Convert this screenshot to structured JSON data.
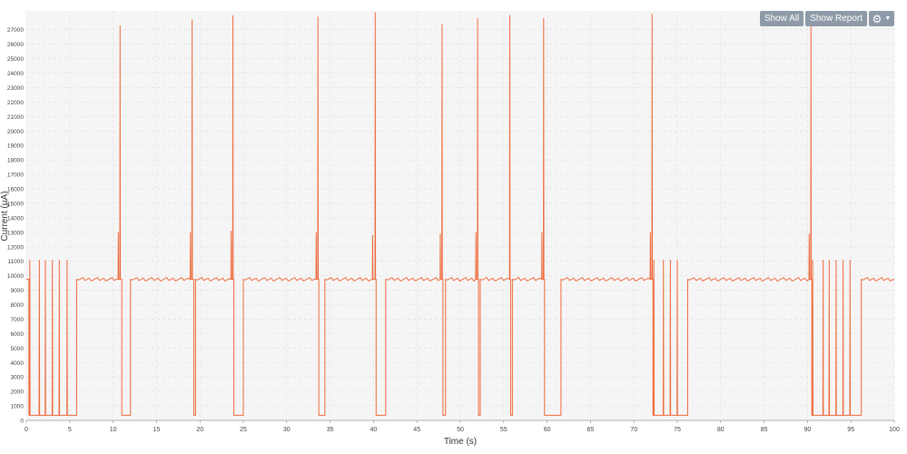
{
  "toolbar": {
    "show_all_label": "Show All",
    "show_report_label": "Show Report",
    "settings_icon": "gear-icon",
    "settings_caret_icon": "chevron-down-icon"
  },
  "colors": {
    "series": "#ee6a3c",
    "plot_background": "#f5f5f5",
    "grid": "#dedede",
    "button": "#8e9aa8"
  },
  "chart_data": {
    "type": "line",
    "title": "",
    "xlabel": "Time (s)",
    "ylabel": "Current (µA)",
    "xlim": [
      0,
      100
    ],
    "ylim": [
      0,
      28300
    ],
    "xticks": [
      0,
      5,
      10,
      15,
      20,
      25,
      30,
      35,
      40,
      45,
      50,
      55,
      60,
      65,
      70,
      75,
      80,
      85,
      90,
      95,
      100
    ],
    "yticks": [
      0,
      1000,
      2000,
      3000,
      4000,
      5000,
      6000,
      7000,
      8000,
      9000,
      10000,
      11000,
      12000,
      13000,
      14000,
      15000,
      16000,
      17000,
      18000,
      19000,
      20000,
      21000,
      22000,
      23000,
      24000,
      25000,
      26000,
      27000
    ],
    "grid": true,
    "legend": "none",
    "baseline_active": 9750,
    "baseline_idle": 350,
    "spikes": [
      {
        "t": 10.8,
        "peak": 27300
      },
      {
        "t": 19.1,
        "peak": 27700
      },
      {
        "t": 23.8,
        "peak": 28000
      },
      {
        "t": 33.6,
        "peak": 27900
      },
      {
        "t": 40.2,
        "peak": 28200
      },
      {
        "t": 47.9,
        "peak": 27400
      },
      {
        "t": 52.0,
        "peak": 27800
      },
      {
        "t": 55.7,
        "peak": 28000
      },
      {
        "t": 59.6,
        "peak": 27800
      },
      {
        "t": 72.1,
        "peak": 28100
      },
      {
        "t": 90.4,
        "peak": 27500
      }
    ],
    "idle_periods": [
      [
        0.3,
        5.8
      ],
      [
        11.0,
        12.0
      ],
      [
        19.3,
        19.5
      ],
      [
        23.9,
        25.0
      ],
      [
        33.7,
        34.4
      ],
      [
        40.3,
        41.4
      ],
      [
        48.0,
        48.3
      ],
      [
        52.1,
        52.3
      ],
      [
        55.8,
        56.0
      ],
      [
        59.7,
        61.6
      ],
      [
        72.2,
        76.2
      ],
      [
        90.5,
        96.2
      ]
    ],
    "pulse_trains": [
      {
        "times": [
          0.4,
          1.5,
          2.2,
          3.0,
          3.8,
          4.7
        ],
        "peak": 11100
      },
      {
        "times": [
          72.3,
          73.4,
          74.2,
          75.0
        ],
        "peak": 11100
      },
      {
        "times": [
          90.6,
          91.8,
          92.5,
          93.3,
          94.1,
          94.9
        ],
        "peak": 11100
      }
    ],
    "pre_spike_bumps": [
      {
        "t": 10.6,
        "value": 13000
      },
      {
        "t": 18.9,
        "value": 13000
      },
      {
        "t": 23.6,
        "value": 13100
      },
      {
        "t": 33.4,
        "value": 13000
      },
      {
        "t": 39.9,
        "value": 12800
      },
      {
        "t": 47.7,
        "value": 12900
      },
      {
        "t": 51.8,
        "value": 13000
      },
      {
        "t": 59.4,
        "value": 13000
      },
      {
        "t": 71.9,
        "value": 13000
      },
      {
        "t": 90.2,
        "value": 12900
      }
    ]
  }
}
